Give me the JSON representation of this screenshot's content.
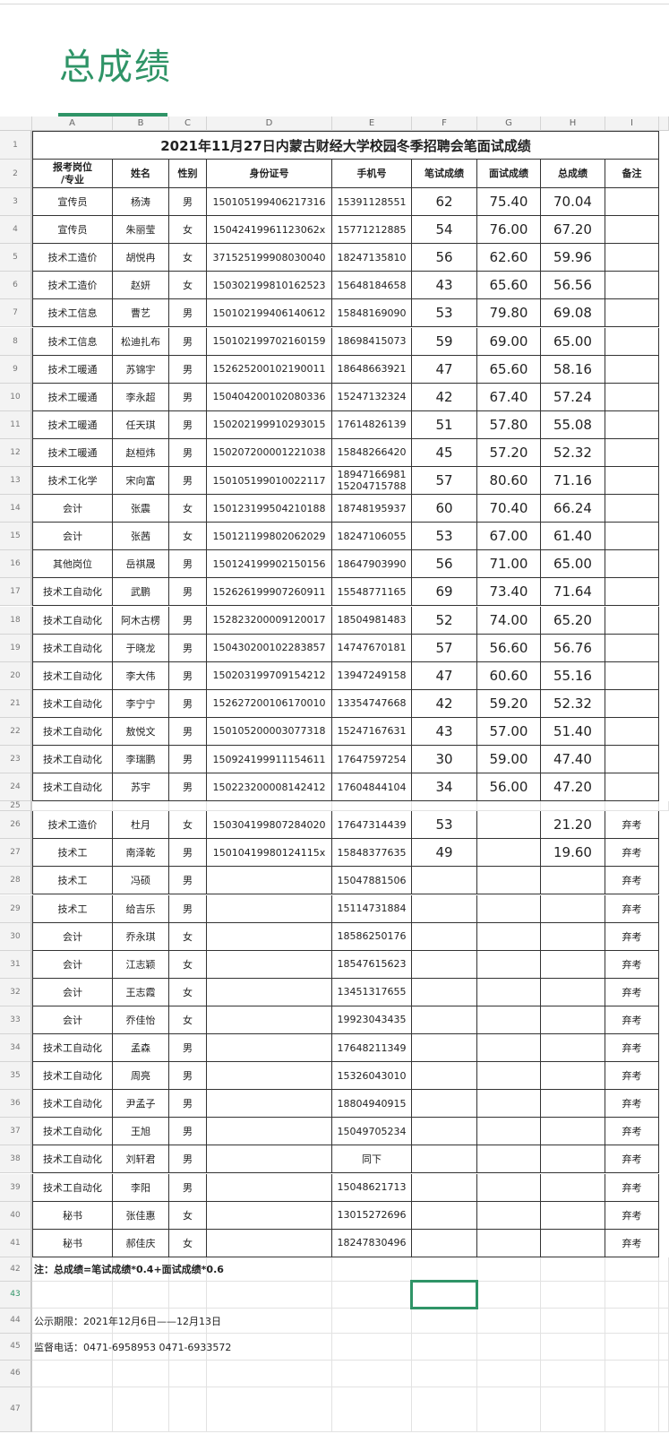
{
  "app": {
    "sheet_title": "总成绩",
    "accent_color": "#2f9467"
  },
  "columns": [
    "A",
    "B",
    "C",
    "D",
    "E",
    "F",
    "G",
    "H",
    "I"
  ],
  "table_title": "2021年11月27日内蒙古财经大学校园冬季招聘会笔面试成绩",
  "headers": [
    "报考岗位\n/专业",
    "姓名",
    "性别",
    "身份证号",
    "手机号",
    "笔试成绩",
    "面试成绩",
    "总成绩",
    "备注"
  ],
  "rows": [
    {
      "row": 3,
      "cells": [
        "宣传员",
        "杨涛",
        "男",
        "150105199406217316",
        "15391128551",
        "62",
        "75.40",
        "70.04",
        ""
      ]
    },
    {
      "row": 4,
      "cells": [
        "宣传员",
        "朱丽莹",
        "女",
        "15042419961123062x",
        "15771212885",
        "54",
        "76.00",
        "67.20",
        ""
      ]
    },
    {
      "row": 5,
      "cells": [
        "技术工造价",
        "胡悦冉",
        "女",
        "371525199908030040",
        "18247135810",
        "56",
        "62.60",
        "59.96",
        ""
      ]
    },
    {
      "row": 6,
      "cells": [
        "技术工造价",
        "赵妍",
        "女",
        "150302199810162523",
        "15648184658",
        "43",
        "65.60",
        "56.56",
        ""
      ]
    },
    {
      "row": 7,
      "cells": [
        "技术工信息",
        "曹艺",
        "男",
        "150102199406140612",
        "15848169090",
        "53",
        "79.80",
        "69.08",
        ""
      ]
    },
    {
      "row": 8,
      "cells": [
        "技术工信息",
        "松迪扎布",
        "男",
        "150102199702160159",
        "18698415073",
        "59",
        "69.00",
        "65.00",
        ""
      ]
    },
    {
      "row": 9,
      "cells": [
        "技术工暖通",
        "苏锦宇",
        "男",
        "152625200102190011",
        "18648663921",
        "47",
        "65.60",
        "58.16",
        ""
      ]
    },
    {
      "row": 10,
      "cells": [
        "技术工暖通",
        "李永超",
        "男",
        "150404200102080336",
        "15247132324",
        "42",
        "67.40",
        "57.24",
        ""
      ]
    },
    {
      "row": 11,
      "cells": [
        "技术工暖通",
        "任天琪",
        "男",
        "150202199910293015",
        "17614826139",
        "51",
        "57.80",
        "55.08",
        ""
      ]
    },
    {
      "row": 12,
      "cells": [
        "技术工暖通",
        "赵桓炜",
        "男",
        "150207200001221038",
        "15848266420",
        "45",
        "57.20",
        "52.32",
        ""
      ]
    },
    {
      "row": 13,
      "cells": [
        "技术工化学",
        "宋向富",
        "男",
        "150105199010022117",
        "18947166981\n15204715788",
        "57",
        "80.60",
        "71.16",
        ""
      ]
    },
    {
      "row": 14,
      "cells": [
        "会计",
        "张震",
        "女",
        "150123199504210188",
        "18748195937",
        "60",
        "70.40",
        "66.24",
        ""
      ]
    },
    {
      "row": 15,
      "cells": [
        "会计",
        "张茜",
        "女",
        "150121199802062029",
        "18247106055",
        "53",
        "67.00",
        "61.40",
        ""
      ]
    },
    {
      "row": 16,
      "cells": [
        "其他岗位",
        "岳祺晟",
        "男",
        "150124199902150156",
        "18647903990",
        "56",
        "71.00",
        "65.00",
        ""
      ]
    },
    {
      "row": 17,
      "cells": [
        "技术工自动化",
        "武鹏",
        "男",
        "152626199907260911",
        "15548771165",
        "69",
        "73.40",
        "71.64",
        ""
      ]
    },
    {
      "row": 18,
      "cells": [
        "技术工自动化",
        "阿木古楞",
        "男",
        "152823200009120017",
        "18504981483",
        "52",
        "74.00",
        "65.20",
        ""
      ]
    },
    {
      "row": 19,
      "cells": [
        "技术工自动化",
        "于晓龙",
        "男",
        "150430200102283857",
        "14747670181",
        "57",
        "56.60",
        "56.76",
        ""
      ]
    },
    {
      "row": 20,
      "cells": [
        "技术工自动化",
        "李大伟",
        "男",
        "150203199709154212",
        "13947249158",
        "47",
        "60.60",
        "55.16",
        ""
      ]
    },
    {
      "row": 21,
      "cells": [
        "技术工自动化",
        "李宁宁",
        "男",
        "152627200106170010",
        "13354747668",
        "42",
        "59.20",
        "52.32",
        ""
      ]
    },
    {
      "row": 22,
      "cells": [
        "技术工自动化",
        "敖悦文",
        "男",
        "150105200003077318",
        "15247167631",
        "43",
        "57.00",
        "51.40",
        ""
      ]
    },
    {
      "row": 23,
      "cells": [
        "技术工自动化",
        "李瑞鹏",
        "男",
        "150924199911154611",
        "17647597254",
        "30",
        "59.00",
        "47.40",
        ""
      ]
    },
    {
      "row": 24,
      "cells": [
        "技术工自动化",
        "苏宇",
        "男",
        "150223200008142412",
        "17604844104",
        "34",
        "56.00",
        "47.20",
        ""
      ]
    },
    {
      "row": 26,
      "cells": [
        "技术工造价",
        "杜月",
        "女",
        "150304199807284020",
        "17647314439",
        "53",
        "",
        "21.20",
        "弃考"
      ]
    },
    {
      "row": 27,
      "cells": [
        "技术工",
        "南泽乾",
        "男",
        "15010419980124115x",
        "15848377635",
        "49",
        "",
        "19.60",
        "弃考"
      ]
    },
    {
      "row": 28,
      "cells": [
        "技术工",
        "冯硕",
        "男",
        "",
        "15047881506",
        "",
        "",
        "",
        "弃考"
      ]
    },
    {
      "row": 29,
      "cells": [
        "技术工",
        "给吉乐",
        "男",
        "",
        "15114731884",
        "",
        "",
        "",
        "弃考"
      ]
    },
    {
      "row": 30,
      "cells": [
        "会计",
        "乔永琪",
        "女",
        "",
        "18586250176",
        "",
        "",
        "",
        "弃考"
      ]
    },
    {
      "row": 31,
      "cells": [
        "会计",
        "江志颖",
        "女",
        "",
        "18547615623",
        "",
        "",
        "",
        "弃考"
      ]
    },
    {
      "row": 32,
      "cells": [
        "会计",
        "王志霞",
        "女",
        "",
        "13451317655",
        "",
        "",
        "",
        "弃考"
      ]
    },
    {
      "row": 33,
      "cells": [
        "会计",
        "乔佳怡",
        "女",
        "",
        "19923043435",
        "",
        "",
        "",
        "弃考"
      ]
    },
    {
      "row": 34,
      "cells": [
        "技术工自动化",
        "孟森",
        "男",
        "",
        "17648211349",
        "",
        "",
        "",
        "弃考"
      ]
    },
    {
      "row": 35,
      "cells": [
        "技术工自动化",
        "周亮",
        "男",
        "",
        "15326043010",
        "",
        "",
        "",
        "弃考"
      ]
    },
    {
      "row": 36,
      "cells": [
        "技术工自动化",
        "尹孟子",
        "男",
        "",
        "18804940915",
        "",
        "",
        "",
        "弃考"
      ]
    },
    {
      "row": 37,
      "cells": [
        "技术工自动化",
        "王旭",
        "男",
        "",
        "15049705234",
        "",
        "",
        "",
        "弃考"
      ]
    },
    {
      "row": 38,
      "cells": [
        "技术工自动化",
        "刘轩君",
        "男",
        "",
        "同下",
        "",
        "",
        "",
        "弃考"
      ]
    },
    {
      "row": 39,
      "cells": [
        "技术工自动化",
        "李阳",
        "男",
        "",
        "15048621713",
        "",
        "",
        "",
        "弃考"
      ]
    },
    {
      "row": 40,
      "cells": [
        "秘书",
        "张佳惠",
        "女",
        "",
        "13015272696",
        "",
        "",
        "",
        "弃考"
      ]
    },
    {
      "row": 41,
      "cells": [
        "秘书",
        "郝佳庆",
        "女",
        "",
        "18247830496",
        "",
        "",
        "",
        "弃考"
      ]
    }
  ],
  "notes": {
    "formula": "注：总成绩=笔试成绩*0.4+面试成绩*0.6",
    "period": "公示期限：2021年12月6日——12月13日",
    "phone": "监督电话：0471-6958953  0471-6933572"
  },
  "selected_cell": "F43"
}
